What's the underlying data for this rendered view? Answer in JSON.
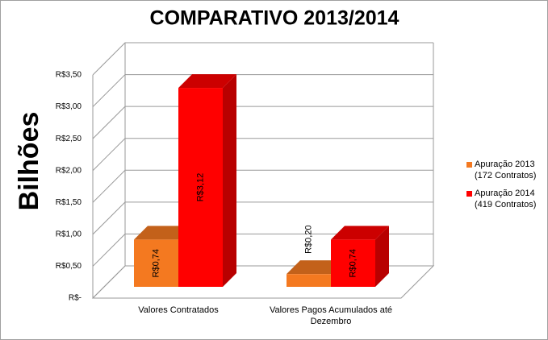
{
  "chart_data": {
    "type": "bar3d",
    "title": "COMPARATIVO 2013/2014",
    "y_label": "Bilhões",
    "categories": [
      "Valores Contratados",
      "Valores Pagos Acumulados até Dezembro"
    ],
    "series": [
      {
        "name": "Apuração 2013 (172 Contratos)",
        "color": "#f47920",
        "values": [
          0.74,
          0.2
        ],
        "value_labels": [
          "R$0,74",
          "R$0,20"
        ]
      },
      {
        "name": "Apuração 2014 (419 Contratos)",
        "color": "#ff0000",
        "values": [
          3.12,
          0.74
        ],
        "value_labels": [
          "R$3,12",
          "R$0,74"
        ]
      }
    ],
    "ylim": [
      0,
      3.5
    ],
    "yticks": [
      {
        "value": 0,
        "label": "R$-"
      },
      {
        "value": 0.5,
        "label": "R$0,50"
      },
      {
        "value": 1,
        "label": "R$1,00"
      },
      {
        "value": 1.5,
        "label": "R$1,50"
      },
      {
        "value": 2,
        "label": "R$2,00"
      },
      {
        "value": 2.5,
        "label": "R$2,50"
      },
      {
        "value": 3,
        "label": "R$3,00"
      },
      {
        "value": 3.5,
        "label": "R$3,50"
      }
    ],
    "grid": true,
    "legend": "right"
  }
}
